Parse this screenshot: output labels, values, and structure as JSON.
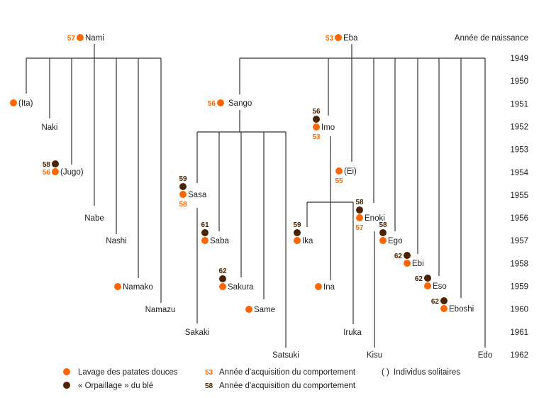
{
  "axis_title": "Année de naissance",
  "years": [
    "1949",
    "1950",
    "1951",
    "1952",
    "1953",
    "1954",
    "1955",
    "1956",
    "1957",
    "1958",
    "1959",
    "1960",
    "1961",
    "1962"
  ],
  "colors": {
    "potato": "#ff6600",
    "wheat": "#4d2200",
    "line": "#333333"
  },
  "individuals": [
    {
      "label": "Nami",
      "potato": "57"
    },
    {
      "label": "Eba",
      "potato": "53"
    },
    {
      "label": "(Ita)",
      "born": "1951",
      "potato": ""
    },
    {
      "label": "Naki",
      "born": "1952"
    },
    {
      "label": "(Jugo)",
      "born": "1954",
      "potato": "56",
      "wheat": "58"
    },
    {
      "label": "Nabe",
      "born": "1956"
    },
    {
      "label": "Nashi",
      "born": "1957"
    },
    {
      "label": "Namako",
      "born": "1959",
      "potato": ""
    },
    {
      "label": "Namazu",
      "born": "1960"
    },
    {
      "label": "Sango",
      "born": "1951",
      "potato": "56"
    },
    {
      "label": "Sasa",
      "born": "1955",
      "potato": "58",
      "wheat": "59"
    },
    {
      "label": "Sakaki",
      "born": "1961"
    },
    {
      "label": "Saba",
      "born": "1957",
      "potato": "",
      "wheat": "61"
    },
    {
      "label": "Sakura",
      "born": "1959",
      "potato": "",
      "wheat": "62"
    },
    {
      "label": "Same",
      "born": "1960",
      "potato": ""
    },
    {
      "label": "Satsuki",
      "born": "1962"
    },
    {
      "label": "Imo",
      "born": "1952",
      "potato": "53",
      "wheat": "56"
    },
    {
      "label": "(Ei)",
      "born": "1954",
      "potato": "55"
    },
    {
      "label": "Ika",
      "born": "1957",
      "potato": "",
      "wheat": "59"
    },
    {
      "label": "Enoki",
      "born": "1956",
      "potato": "57",
      "wheat": "58"
    },
    {
      "label": "Ina",
      "born": "1959",
      "potato": ""
    },
    {
      "label": "Ego",
      "born": "1957",
      "potato": "",
      "wheat": "58"
    },
    {
      "label": "Ebi",
      "born": "1958",
      "potato": "",
      "wheat": "62"
    },
    {
      "label": "Eso",
      "born": "1959",
      "potato": "",
      "wheat": "62"
    },
    {
      "label": "Eboshi",
      "born": "1960",
      "potato": "",
      "wheat": "62"
    },
    {
      "label": "Iruka",
      "born": "1961"
    },
    {
      "label": "Kisu",
      "born": "1962"
    },
    {
      "label": "Edo",
      "born": "1962"
    }
  ],
  "legend": {
    "potato_label": "Lavage des patates douces",
    "wheat_label": "« Orpaillage » du blé",
    "potato_year_sample": "53",
    "potato_year_label": "Année d'acquisition du comportement",
    "wheat_year_sample": "58",
    "wheat_year_label": "Année d'acquisition du comportement",
    "solitary_symbol": "( )",
    "solitary_label": "Individus solitaires"
  }
}
